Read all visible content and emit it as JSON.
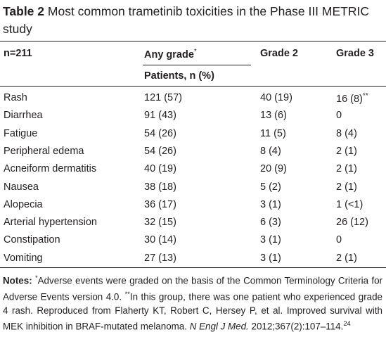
{
  "title": {
    "label": "Table 2",
    "text": "Most common trametinib toxicities in the Phase III METRIC study"
  },
  "table": {
    "header": {
      "n": "n=211",
      "any_grade": "Any grade",
      "any_grade_mark": "*",
      "grade2": "Grade 2",
      "grade3": "Grade 3",
      "subheader": "Patients, n (%)"
    },
    "rows": [
      [
        "Rash",
        "121 (57)",
        "40 (19)",
        "16 (8)"
      ],
      [
        "Diarrhea",
        "91 (43)",
        "13 (6)",
        "0"
      ],
      [
        "Fatigue",
        "54 (26)",
        "11 (5)",
        "8 (4)"
      ],
      [
        "Peripheral edema",
        "54 (26)",
        "8 (4)",
        "2 (1)"
      ],
      [
        "Acneiform dermatitis",
        "40 (19)",
        "20 (9)",
        "2 (1)"
      ],
      [
        "Nausea",
        "38 (18)",
        "5 (2)",
        "2 (1)"
      ],
      [
        "Alopecia",
        "36 (17)",
        "3 (1)",
        "1 (<1)"
      ],
      [
        "Arterial hypertension",
        "32 (15)",
        "6 (3)",
        "26 (12)"
      ],
      [
        "Constipation",
        "30 (14)",
        "3 (1)",
        "0"
      ],
      [
        "Vomiting",
        "27 (13)",
        "3 (1)",
        "2 (1)"
      ]
    ],
    "rash_grade3_mark": "**"
  },
  "notes": {
    "label": "Notes:",
    "mark1": "*",
    "text1": "Adverse events were graded on the basis of the Common Terminology Criteria for Adverse Events version 4.0. ",
    "mark2": "**",
    "text2": "In this group, there was one patient who experienced grade 4 rash. Reproduced from Flaherty KT, Robert C, Hersey P, et al. Improved survival with MEK inhibition in BRAF-mutated melanoma. ",
    "journal": "N Engl J Med.",
    "citation": " 2012;367(2):107–114.",
    "ref": "24"
  }
}
